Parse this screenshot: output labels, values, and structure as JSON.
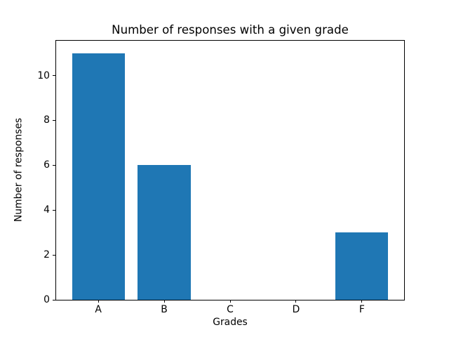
{
  "chart_data": {
    "type": "bar",
    "title": "Number of responses with a given grade",
    "xlabel": "Grades",
    "ylabel": "Number of responses",
    "categories": [
      "A",
      "B",
      "C",
      "D",
      "F"
    ],
    "values": [
      11,
      6,
      0,
      0,
      3
    ],
    "yticks": [
      0,
      2,
      4,
      6,
      8,
      10
    ],
    "ylim": [
      0,
      11.55
    ],
    "xlim": [
      -0.64,
      4.64
    ],
    "bar_width": 0.8,
    "bar_color": "#1f77b4",
    "spine_color": "#000000",
    "grid": false,
    "legend": false
  }
}
